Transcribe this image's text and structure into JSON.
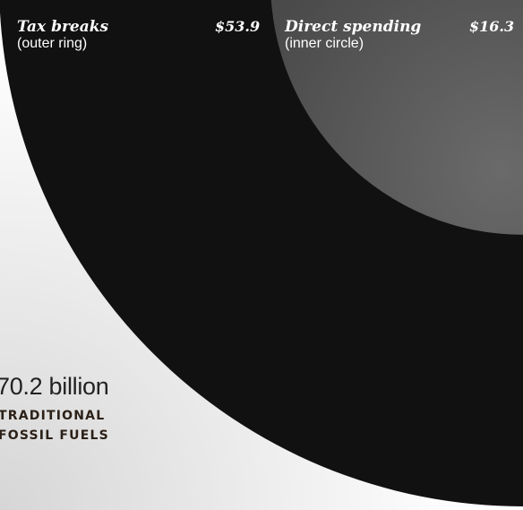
{
  "chart_data": {
    "type": "pie",
    "total_label": "70.2 billion",
    "category_lines": [
      "TRADITIONAL",
      "FOSSIL FUELS"
    ],
    "series": [
      {
        "name": "Tax breaks",
        "note": "(outer ring)",
        "value": 53.9,
        "value_label": "$53.9",
        "color": "#111111"
      },
      {
        "name": "Direct spending",
        "note": "(inner circle)",
        "value": 16.3,
        "value_label": "$16.3",
        "color": "#5a5a5a"
      }
    ],
    "background_colors": [
      "#ffffff",
      "#d6d6d6"
    ]
  }
}
